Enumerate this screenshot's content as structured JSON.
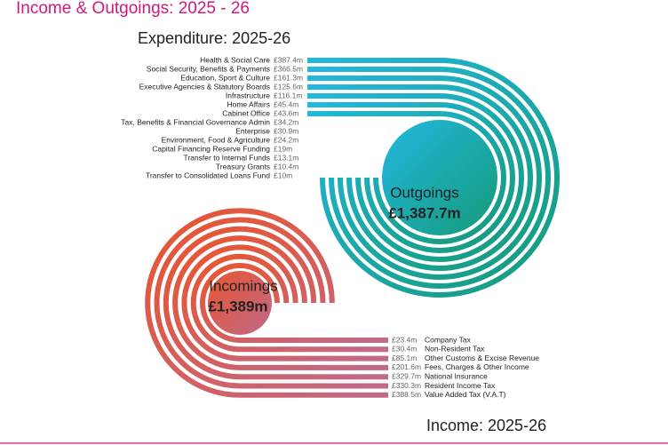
{
  "title": "Income & Outgoings: 2025 - 26",
  "chart_data": [
    {
      "type": "track",
      "title": "Expenditure: 2025-26",
      "label": "Outgoings",
      "total_label": "£1,387.7m",
      "colors": [
        "#22b8e0",
        "#159a78"
      ],
      "categories": [
        "Health & Social Care",
        "Social Security, Benefits & Payments",
        "Education, Sport & Culture",
        "Executive Agencies & Statutory Boards",
        "Infrastructure",
        "Home Affairs",
        "Cabinet Office",
        "Tax, Benefits & Financial Governance Admin",
        "Enterprise",
        "Environment, Food & Agriculture",
        "Capital Financing Reserve Funding",
        "Transfer to Internal Funds",
        "Treasury Grants",
        "Transfer to Consolidated Loans Fund"
      ],
      "values": [
        387.4,
        366.5,
        161.3,
        125.6,
        116.1,
        45.4,
        43.6,
        34.2,
        30.9,
        24.2,
        19,
        13.1,
        10.4,
        10
      ],
      "value_labels": [
        "£387.4m",
        "£366.5m",
        "£161.3m",
        "£125.6m",
        "£116.1m",
        "£45.4m",
        "£43.6m",
        "£34.2m",
        "£30.9m",
        "£24.2m",
        "£19m",
        "£13.1m",
        "£10.4m",
        "£10m"
      ]
    },
    {
      "type": "track",
      "title": "Income: 2025-26",
      "label": "Incomings",
      "total_label": "£1,389m",
      "colors": [
        "#e8552f",
        "#c06a8a"
      ],
      "categories": [
        "Company Tax",
        "Non-Resident Tax",
        "Other Customs & Excise Revenue",
        "Fees, Charges & Other Income",
        "National Insurance",
        "Resident Income Tax",
        "Value Added Tax (V.A.T)"
      ],
      "values": [
        23.4,
        30.4,
        85.1,
        201.6,
        329.7,
        330.3,
        388.5
      ],
      "value_labels": [
        "£23.4m",
        "£30.4m",
        "£85.1m",
        "£201.6m",
        "£329.7m",
        "£330.3m",
        "£388.5m"
      ]
    }
  ]
}
